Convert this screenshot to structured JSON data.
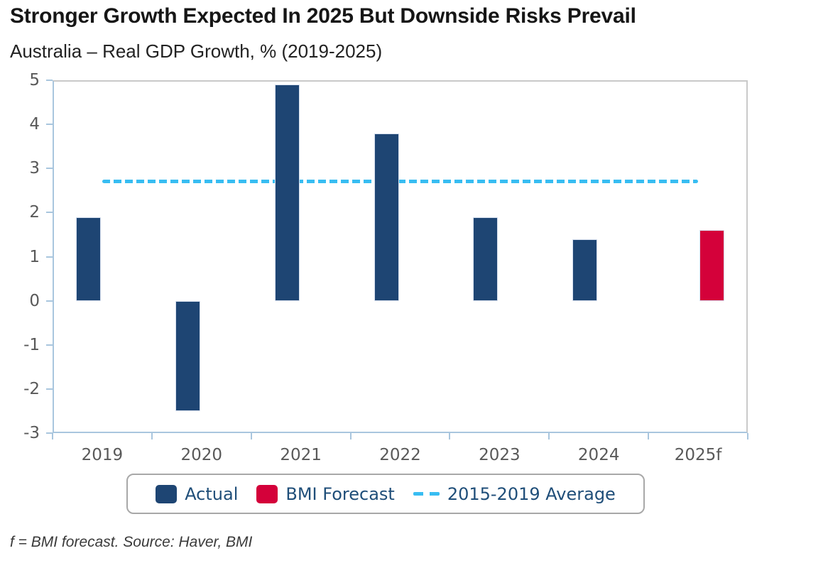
{
  "header": {
    "title": "Stronger Growth Expected In 2025 But Downside Risks Prevail",
    "subtitle": "Australia – Real GDP Growth, % (2019-2025)"
  },
  "chart_data": {
    "type": "bar",
    "title": "Stronger Growth Expected In 2025 But Downside Risks Prevail",
    "subtitle": "Australia – Real GDP Growth, % (2019-2025)",
    "categories": [
      "2019",
      "2020",
      "2021",
      "2022",
      "2023",
      "2024",
      "2025f"
    ],
    "series": [
      {
        "name": "Actual",
        "color": "#1e4573",
        "values": [
          1.9,
          -2.5,
          4.9,
          3.8,
          1.9,
          1.4,
          null
        ]
      },
      {
        "name": "BMI Forecast",
        "color": "#d4013a",
        "values": [
          null,
          null,
          null,
          null,
          null,
          null,
          1.6
        ]
      }
    ],
    "average_line": {
      "label": "2015-2019 Average",
      "value": 2.7,
      "color": "#38bdf2",
      "style": "dashed"
    },
    "xlabel": "",
    "ylabel": "",
    "ylim": [
      -3,
      5
    ],
    "yticks": [
      5,
      4,
      3,
      2,
      1,
      0,
      -1,
      -2,
      -3
    ],
    "grid": false,
    "legend_position": "bottom"
  },
  "legend": {
    "items": [
      {
        "label": "Actual",
        "swatch": "square",
        "color": "#1e4573"
      },
      {
        "label": "BMI Forecast",
        "swatch": "square",
        "color": "#d4013a"
      },
      {
        "label": "2015-2019 Average",
        "swatch": "dashes",
        "color": "#38bdf2"
      }
    ]
  },
  "footer": {
    "note": "f = BMI forecast. Source: Haver, BMI"
  }
}
